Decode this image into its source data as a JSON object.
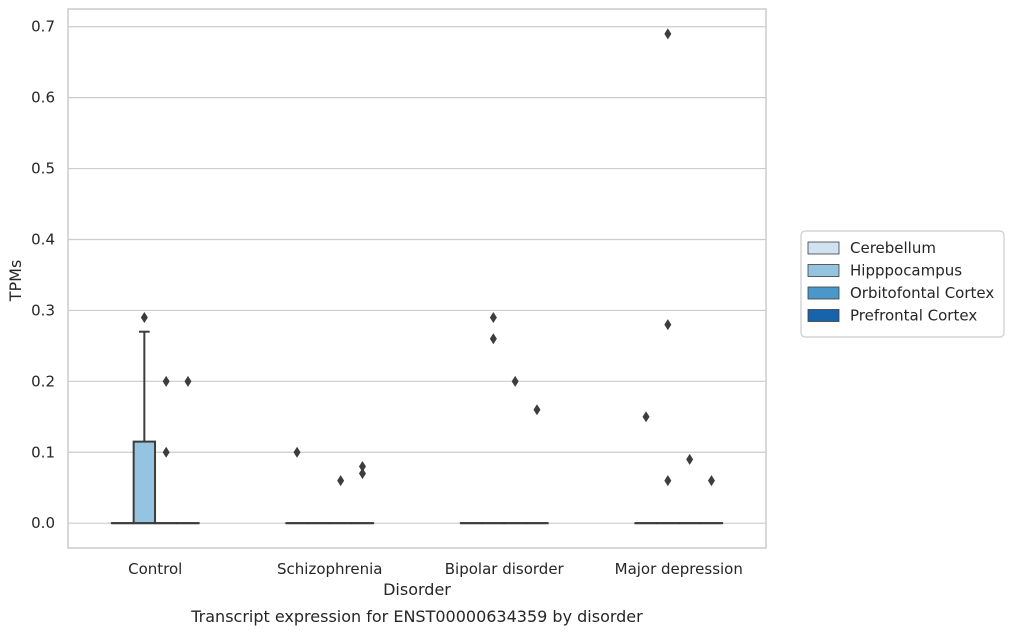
{
  "chart_data": {
    "type": "box",
    "xlabel": "Disorder",
    "ylabel": "TPMs",
    "caption": "Transcript expression for ENST00000634359 by disorder",
    "ylim": [
      -0.035,
      0.725
    ],
    "yticks": [
      "0.0",
      "0.1",
      "0.2",
      "0.3",
      "0.4",
      "0.5",
      "0.6",
      "0.7"
    ],
    "grid": "horizontal",
    "legend_position": "right",
    "categories": [
      "Control",
      "Schizophrenia",
      "Bipolar disorder",
      "Major depression"
    ],
    "series": [
      {
        "name": "Cerebellum",
        "color": "#d0e1f2",
        "boxes": [
          {
            "q1": 0,
            "median": 0,
            "q3": 0,
            "whisker_low": 0,
            "whisker_high": 0,
            "outliers": []
          },
          {
            "q1": 0,
            "median": 0,
            "q3": 0,
            "whisker_low": 0,
            "whisker_high": 0,
            "outliers": [
              0.1
            ]
          },
          {
            "q1": 0,
            "median": 0,
            "q3": 0,
            "whisker_low": 0,
            "whisker_high": 0,
            "outliers": []
          },
          {
            "q1": 0,
            "median": 0,
            "q3": 0,
            "whisker_low": 0,
            "whisker_high": 0,
            "outliers": [
              0.15
            ]
          }
        ]
      },
      {
        "name": "Hipppocampus",
        "color": "#94c4df",
        "boxes": [
          {
            "q1": 0,
            "median": 0,
            "q3": 0.115,
            "whisker_low": 0,
            "whisker_high": 0.27,
            "outliers": [
              0.29
            ]
          },
          {
            "q1": 0,
            "median": 0,
            "q3": 0,
            "whisker_low": 0,
            "whisker_high": 0,
            "outliers": []
          },
          {
            "q1": 0,
            "median": 0,
            "q3": 0,
            "whisker_low": 0,
            "whisker_high": 0,
            "outliers": [
              0.26,
              0.29
            ]
          },
          {
            "q1": 0,
            "median": 0,
            "q3": 0,
            "whisker_low": 0,
            "whisker_high": 0,
            "outliers": [
              0.06,
              0.28,
              0.69
            ]
          }
        ]
      },
      {
        "name": "Orbitofontal Cortex",
        "color": "#4a98c9",
        "boxes": [
          {
            "q1": 0,
            "median": 0,
            "q3": 0,
            "whisker_low": 0,
            "whisker_high": 0,
            "outliers": [
              0.1,
              0.2
            ]
          },
          {
            "q1": 0,
            "median": 0,
            "q3": 0,
            "whisker_low": 0,
            "whisker_high": 0,
            "outliers": [
              0.06
            ]
          },
          {
            "q1": 0,
            "median": 0,
            "q3": 0,
            "whisker_low": 0,
            "whisker_high": 0,
            "outliers": [
              0.2
            ]
          },
          {
            "q1": 0,
            "median": 0,
            "q3": 0,
            "whisker_low": 0,
            "whisker_high": 0,
            "outliers": [
              0.09
            ]
          }
        ]
      },
      {
        "name": "Prefrontal Cortex",
        "color": "#1764ab",
        "boxes": [
          {
            "q1": 0,
            "median": 0,
            "q3": 0,
            "whisker_low": 0,
            "whisker_high": 0,
            "outliers": [
              0.2
            ]
          },
          {
            "q1": 0,
            "median": 0,
            "q3": 0,
            "whisker_low": 0,
            "whisker_high": 0,
            "outliers": [
              0.07,
              0.08
            ]
          },
          {
            "q1": 0,
            "median": 0,
            "q3": 0,
            "whisker_low": 0,
            "whisker_high": 0,
            "outliers": [
              0.16
            ]
          },
          {
            "q1": 0,
            "median": 0,
            "q3": 0,
            "whisker_low": 0,
            "whisker_high": 0,
            "outliers": [
              0.06
            ]
          }
        ]
      }
    ],
    "colors": {
      "grid": "#cccccc",
      "frame": "#cccccc",
      "line": "#3d3d3d"
    }
  }
}
